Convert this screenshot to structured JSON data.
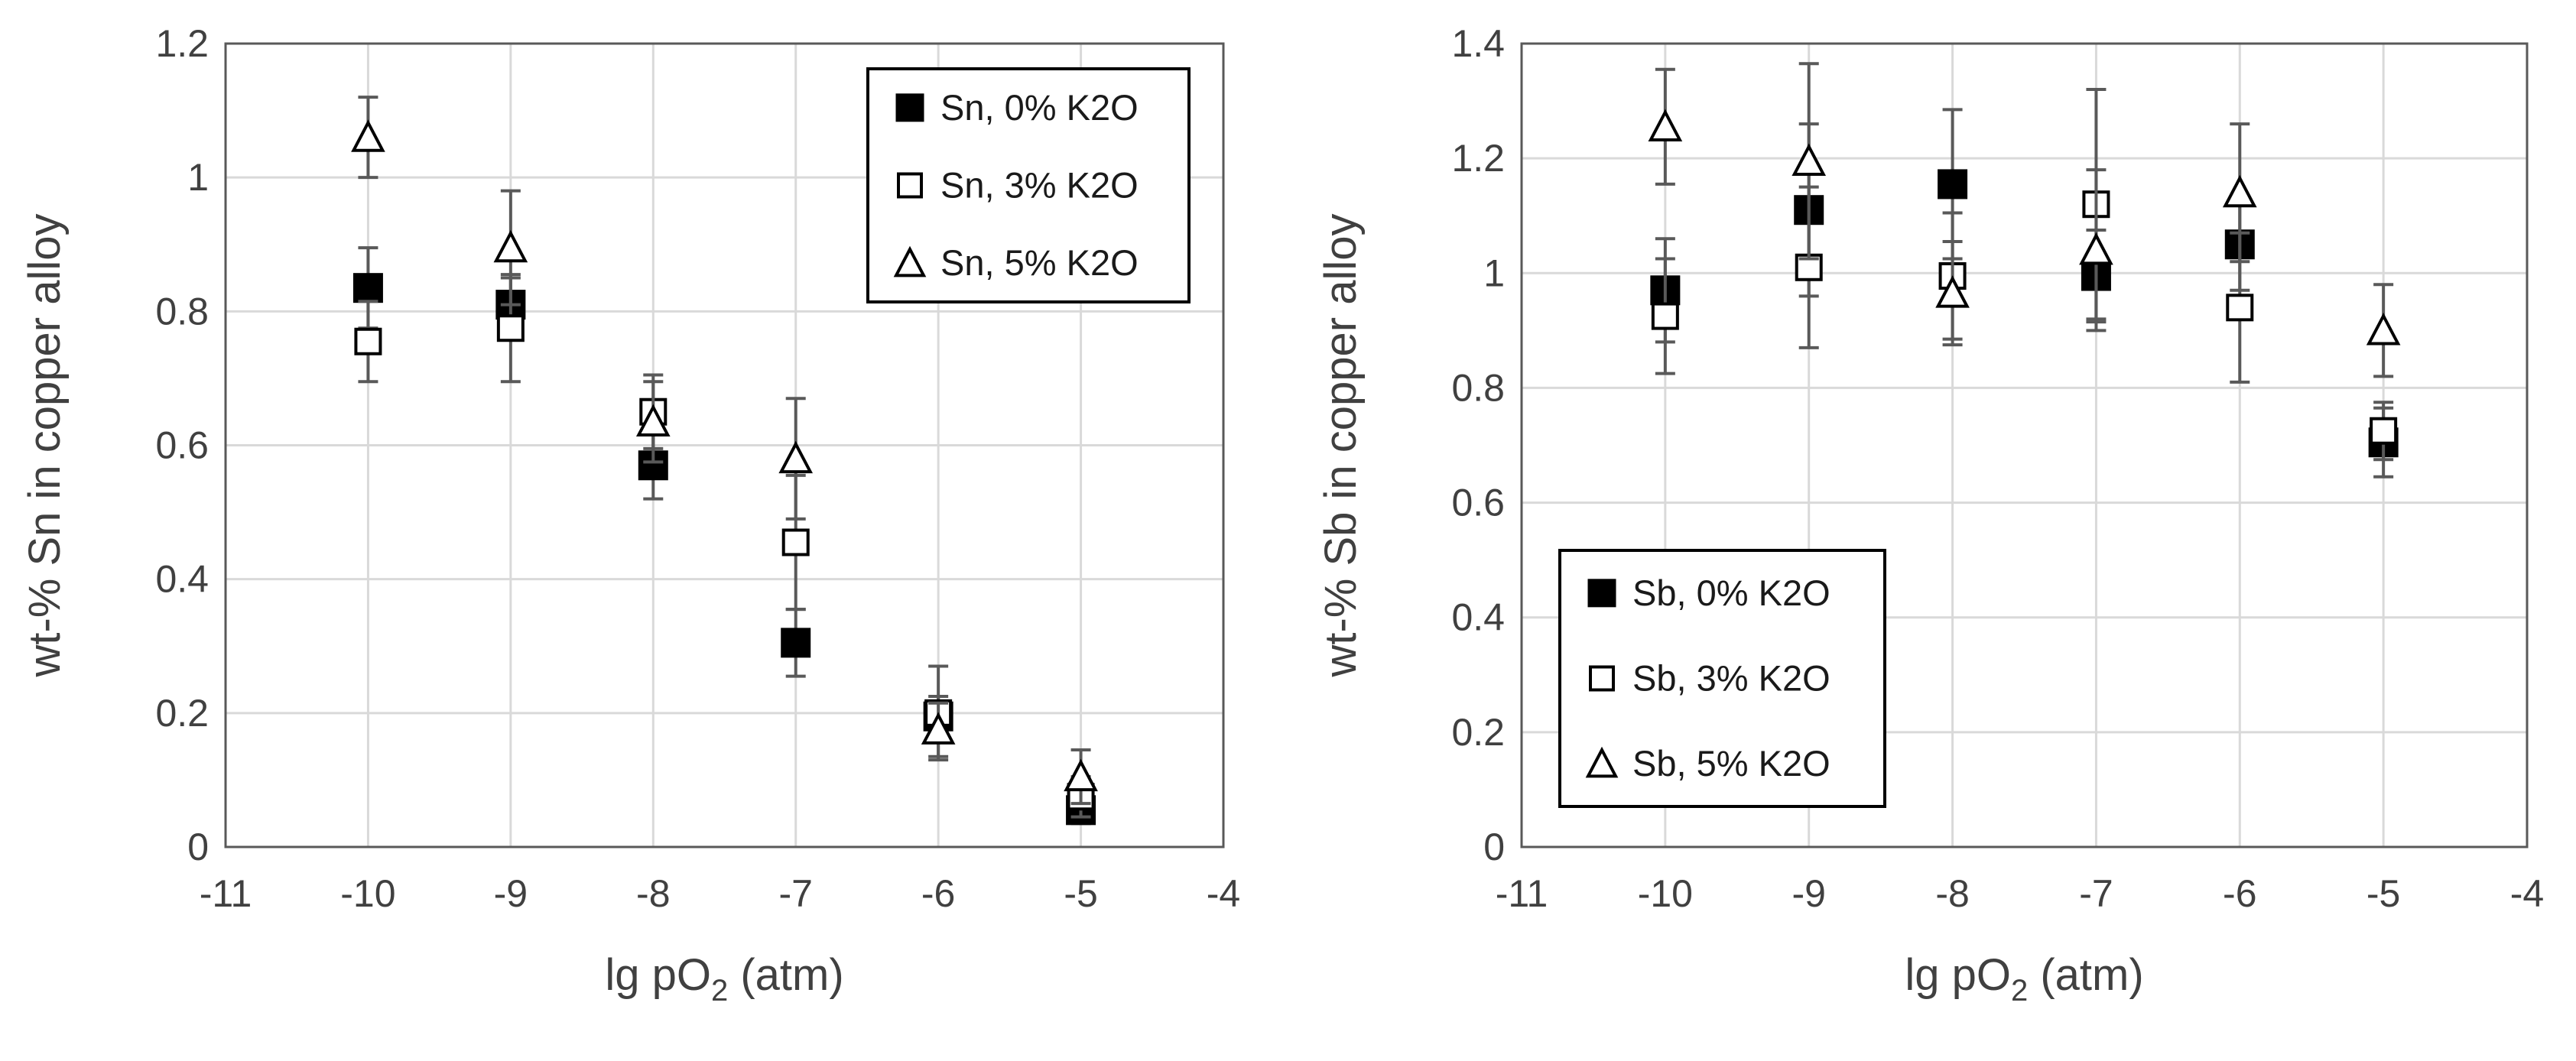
{
  "colors": {
    "grid": "#d9d9d9",
    "axis": "#595959",
    "errbar": "#595959",
    "marker": "#000000",
    "text": "#404040"
  },
  "chart_data": [
    {
      "type": "scatter",
      "title": "",
      "xlabel": "lg pO",
      "xlabel_sub": "2",
      "xlabel_tail": " (atm)",
      "ylabel": "wt-% Sn in copper alloy",
      "xlim": [
        -11,
        -4
      ],
      "ylim": [
        0,
        1.2
      ],
      "xticks": [
        -11,
        -10,
        -9,
        -8,
        -7,
        -6,
        -5,
        -4
      ],
      "xtick_labels": [
        "-11",
        "-10",
        "-9",
        "-8",
        "-7",
        "-6",
        "-5",
        "-4"
      ],
      "yticks": [
        0,
        0.2,
        0.4,
        0.6,
        0.8,
        1,
        1.2
      ],
      "ytick_labels": [
        "0",
        "0.2",
        "0.4",
        "0.6",
        "0.8",
        "1",
        "1.2"
      ],
      "grid": true,
      "legend_position": "top-right",
      "series": [
        {
          "name": "Sn, 0% K2O",
          "marker": "filled-square",
          "x": [
            -10,
            -9,
            -8,
            -7,
            -6,
            -5
          ],
          "y": [
            0.835,
            0.81,
            0.57,
            0.305,
            0.195,
            0.055
          ],
          "err": [
            0.06,
            0.04,
            0.05,
            0.05,
            0.03,
            0.02
          ]
        },
        {
          "name": "Sn, 3% K2O",
          "marker": "open-square",
          "x": [
            -10,
            -9,
            -8,
            -7,
            -6,
            -5
          ],
          "y": [
            0.755,
            0.775,
            0.65,
            0.455,
            0.2,
            0.075
          ],
          "err": [
            0.06,
            0.08,
            0.055,
            0.1,
            0.07,
            0.03
          ]
        },
        {
          "name": "Sn, 5% K2O",
          "marker": "open-triangle",
          "x": [
            -10,
            -9,
            -8,
            -7,
            -6,
            -5
          ],
          "y": [
            1.06,
            0.895,
            0.635,
            0.58,
            0.175,
            0.105
          ],
          "err": [
            0.06,
            0.085,
            0.06,
            0.09,
            0.04,
            0.04
          ]
        }
      ]
    },
    {
      "type": "scatter",
      "title": "",
      "xlabel": "lg pO",
      "xlabel_sub": "2",
      "xlabel_tail": " (atm)",
      "ylabel": "wt-% Sb in copper alloy",
      "xlim": [
        -11,
        -4
      ],
      "ylim": [
        0,
        1.4
      ],
      "xticks": [
        -11,
        -10,
        -9,
        -8,
        -7,
        -6,
        -5,
        -4
      ],
      "xtick_labels": [
        "-11",
        "-10",
        "-9",
        "-8",
        "-7",
        "-6",
        "-5",
        "-4"
      ],
      "yticks": [
        0,
        0.2,
        0.4,
        0.6,
        0.8,
        1,
        1.2,
        1.4
      ],
      "ytick_labels": [
        "0",
        "0.2",
        "0.4",
        "0.6",
        "0.8",
        "1",
        "1.2",
        "1.4"
      ],
      "grid": true,
      "legend_position": "bottom-left",
      "series": [
        {
          "name": "Sb, 0% K2O",
          "marker": "filled-square",
          "x": [
            -10,
            -9,
            -8,
            -7,
            -6,
            -5
          ],
          "y": [
            0.97,
            1.11,
            1.155,
            0.995,
            1.05,
            0.705
          ],
          "err": [
            0.09,
            0.15,
            0.13,
            0.08,
            0.08,
            0.06
          ]
        },
        {
          "name": "Sb, 3% K2O",
          "marker": "open-square",
          "x": [
            -10,
            -9,
            -8,
            -7,
            -6,
            -5
          ],
          "y": [
            0.925,
            1.01,
            0.995,
            1.12,
            0.94,
            0.725
          ],
          "err": [
            0.1,
            0.14,
            0.11,
            0.2,
            0.13,
            0.05
          ]
        },
        {
          "name": "Sb, 5% K2O",
          "marker": "open-triangle",
          "x": [
            -10,
            -9,
            -8,
            -7,
            -6,
            -5
          ],
          "y": [
            1.255,
            1.195,
            0.965,
            1.04,
            1.14,
            0.9
          ],
          "err": [
            0.1,
            0.17,
            0.09,
            0.14,
            0.12,
            0.08
          ]
        }
      ]
    }
  ]
}
